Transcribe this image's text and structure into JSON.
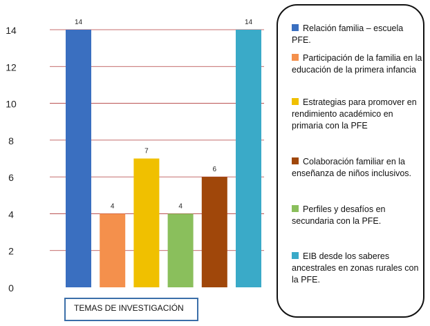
{
  "chart_data": {
    "type": "bar",
    "categories": [
      "Relación familia – escuela PFE.",
      "Participación de la familia en la educación de la primera infancia",
      "Estrategias para promover en rendimiento académico en primaria con la PFE",
      "Colaboración familiar en la enseñanza de niños inclusivos.",
      "Perfiles y desafíos en secundaria con la PFE.",
      "EIB desde los saberes ancestrales en zonas rurales con la PFE."
    ],
    "values": [
      14,
      4,
      7,
      4,
      6,
      14
    ],
    "value_labels": [
      "14",
      "4",
      "7",
      "4",
      "6",
      "14"
    ],
    "colors": [
      "#3a6fc0",
      "#f4904c",
      "#f0c000",
      "#8abf5c",
      "#a0470a",
      "#3aaac8"
    ],
    "xlabel": "TEMAS DE INVESTIGACIÓN",
    "ylabel": "",
    "ylim": [
      0,
      14
    ],
    "yticks": [
      "0",
      "2",
      "4",
      "6",
      "8",
      "10",
      "12",
      "14"
    ],
    "grid": true,
    "legend_position": "right"
  }
}
